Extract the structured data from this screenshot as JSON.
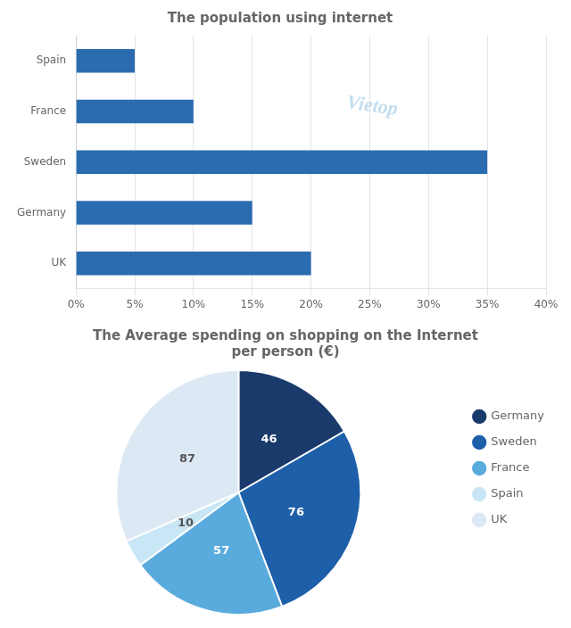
{
  "chart_data": [
    {
      "type": "bar",
      "title": "The population using internet",
      "orientation": "horizontal",
      "categories": [
        "Spain",
        "France",
        "Sweden",
        "Germany",
        "UK"
      ],
      "values": [
        5,
        10,
        35,
        15,
        20
      ],
      "color": "#2b6cb0",
      "xlim": [
        0,
        40
      ],
      "xticks": [
        {
          "value": 0,
          "label": "0%"
        },
        {
          "value": 5,
          "label": "5%"
        },
        {
          "value": 10,
          "label": "10%"
        },
        {
          "value": 15,
          "label": "15%"
        },
        {
          "value": 20,
          "label": "20%"
        },
        {
          "value": 25,
          "label": "25%"
        },
        {
          "value": 30,
          "label": "30%"
        },
        {
          "value": 35,
          "label": "35%"
        },
        {
          "value": 40,
          "label": "40%"
        }
      ],
      "grid": true,
      "annotations": [
        "Vietop"
      ]
    },
    {
      "type": "pie",
      "title": "The Average spending on shopping on the Internet\nper person (€)",
      "categories": [
        "Germany",
        "Sweden",
        "France",
        "Spain",
        "UK"
      ],
      "values": [
        46,
        76,
        57,
        10,
        87
      ],
      "colors": [
        "#1a3a6b",
        "#1e5faa",
        "#5aabdd",
        "#c8e6f5",
        "#dce9f5"
      ],
      "data_labels": true,
      "legend": "right"
    }
  ]
}
